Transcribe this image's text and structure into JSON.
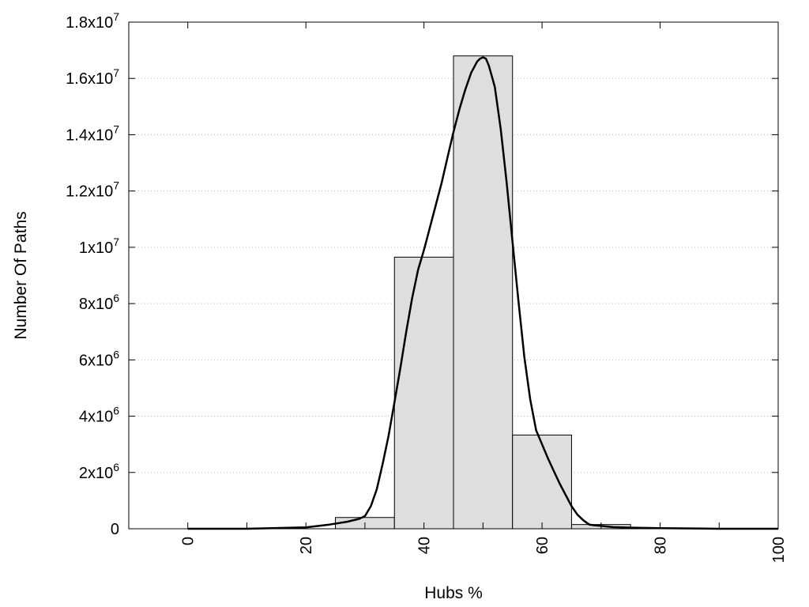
{
  "chart_data": {
    "type": "bar",
    "title": "",
    "xlabel": "Hubs %",
    "ylabel": "Number Of Paths",
    "xlim": [
      -10,
      100
    ],
    "ylim": [
      0,
      18000000
    ],
    "x_ticks": [
      {
        "value": 0,
        "label": "0"
      },
      {
        "value": 20,
        "label": "20"
      },
      {
        "value": 40,
        "label": "40"
      },
      {
        "value": 60,
        "label": "60"
      },
      {
        "value": 80,
        "label": "80"
      },
      {
        "value": 100,
        "label": "100"
      }
    ],
    "y_ticks": [
      {
        "value": 0,
        "mantissa": "0",
        "exponent": ""
      },
      {
        "value": 2000000,
        "mantissa": "2x10",
        "exponent": "6"
      },
      {
        "value": 4000000,
        "mantissa": "4x10",
        "exponent": "6"
      },
      {
        "value": 6000000,
        "mantissa": "6x10",
        "exponent": "6"
      },
      {
        "value": 8000000,
        "mantissa": "8x10",
        "exponent": "6"
      },
      {
        "value": 10000000,
        "mantissa": "1x10",
        "exponent": "7"
      },
      {
        "value": 12000000,
        "mantissa": "1.2x10",
        "exponent": "7"
      },
      {
        "value": 14000000,
        "mantissa": "1.4x10",
        "exponent": "7"
      },
      {
        "value": 16000000,
        "mantissa": "1.6x10",
        "exponent": "7"
      },
      {
        "value": 18000000,
        "mantissa": "1.8x10",
        "exponent": "7"
      }
    ],
    "grid": "horizontal-dotted",
    "bars": [
      {
        "x0": 25,
        "x1": 35,
        "value": 400000
      },
      {
        "x0": 35,
        "x1": 45,
        "value": 9650000
      },
      {
        "x0": 45,
        "x1": 55,
        "value": 16800000
      },
      {
        "x0": 55,
        "x1": 65,
        "value": 3330000
      },
      {
        "x0": 65,
        "x1": 75,
        "value": 150000
      }
    ],
    "bar_fill": "#dedede",
    "curve": {
      "x": [
        0,
        10,
        20,
        24,
        27,
        29,
        30,
        31,
        32,
        33,
        34,
        35,
        36,
        37,
        38,
        39,
        40,
        41,
        42,
        43,
        44,
        45,
        46,
        47,
        48,
        49,
        49.5,
        50,
        50.5,
        51,
        52,
        53,
        54,
        55,
        56,
        57,
        58,
        59,
        60,
        61,
        62,
        63,
        64,
        65,
        66,
        67,
        68,
        69,
        70,
        72,
        75,
        80,
        90,
        100
      ],
      "y": [
        0,
        0,
        50000,
        150000,
        250000,
        350000,
        450000,
        800000,
        1400000,
        2300000,
        3300000,
        4500000,
        5700000,
        7000000,
        8200000,
        9200000,
        9900000,
        10700000,
        11500000,
        12300000,
        13200000,
        14100000,
        14900000,
        15600000,
        16200000,
        16600000,
        16700000,
        16750000,
        16700000,
        16450000,
        15700000,
        14200000,
        12300000,
        10200000,
        8100000,
        6100000,
        4600000,
        3500000,
        3000000,
        2500000,
        2050000,
        1600000,
        1200000,
        800000,
        500000,
        300000,
        150000,
        120000,
        100000,
        60000,
        40000,
        20000,
        0,
        0
      ]
    },
    "curve_color": "#000000"
  }
}
